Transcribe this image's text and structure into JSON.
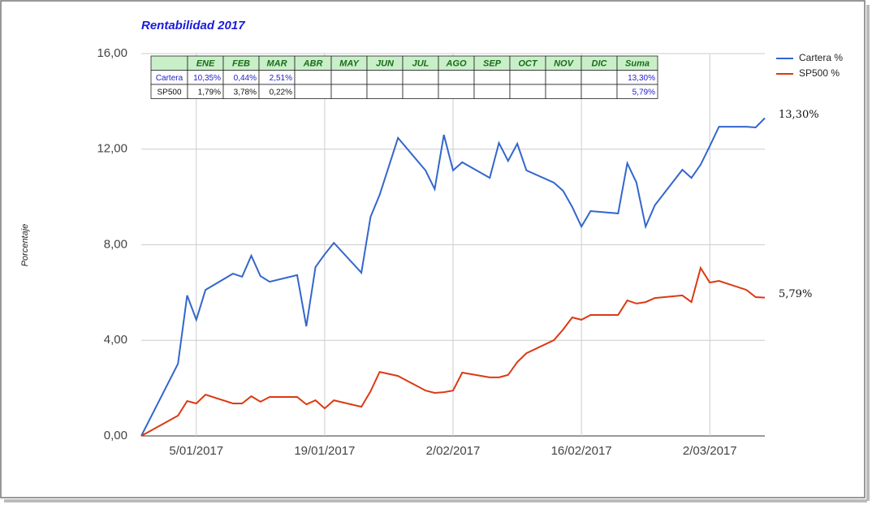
{
  "chart_data": {
    "type": "line",
    "title": "Rentabilidad 2017",
    "y_label": "Porcentaje",
    "x": [
      "2016-12-30",
      "2017-01-03",
      "2017-01-04",
      "2017-01-05",
      "2017-01-06",
      "2017-01-09",
      "2017-01-10",
      "2017-01-11",
      "2017-01-12",
      "2017-01-13",
      "2017-01-16",
      "2017-01-17",
      "2017-01-18",
      "2017-01-19",
      "2017-01-20",
      "2017-01-23",
      "2017-01-24",
      "2017-01-25",
      "2017-01-27",
      "2017-01-30",
      "2017-01-31",
      "2017-02-01",
      "2017-02-02",
      "2017-02-03",
      "2017-02-06",
      "2017-02-07",
      "2017-02-08",
      "2017-02-09",
      "2017-02-10",
      "2017-02-13",
      "2017-02-14",
      "2017-02-15",
      "2017-02-16",
      "2017-02-17",
      "2017-02-20",
      "2017-02-21",
      "2017-02-22",
      "2017-02-23",
      "2017-02-24",
      "2017-02-27",
      "2017-02-28",
      "2017-03-01",
      "2017-03-02",
      "2017-03-03",
      "2017-03-06",
      "2017-03-07",
      "2017-03-08"
    ],
    "series": [
      {
        "name": "Cartera %",
        "color": "#3366cc",
        "values": [
          0,
          3.02,
          5.88,
          4.86,
          6.11,
          6.79,
          6.66,
          7.54,
          6.69,
          6.45,
          6.73,
          4.59,
          7.07,
          7.6,
          8.08,
          6.83,
          9.17,
          10.09,
          12.47,
          11.11,
          10.33,
          12.6,
          11.11,
          11.45,
          10.8,
          12.26,
          11.51,
          12.23,
          11.11,
          10.6,
          10.26,
          9.58,
          8.76,
          9.41,
          9.31,
          11.41,
          10.6,
          8.76,
          9.65,
          11.14,
          10.8,
          11.35,
          12.13,
          12.94,
          12.94,
          12.91,
          13.3
        ]
      },
      {
        "name": "SP500 %",
        "color": "#dc3912",
        "values": [
          0,
          0.85,
          1.46,
          1.36,
          1.73,
          1.36,
          1.36,
          1.66,
          1.43,
          1.63,
          1.63,
          1.32,
          1.49,
          1.15,
          1.49,
          1.22,
          1.87,
          2.68,
          2.51,
          1.9,
          1.8,
          1.83,
          1.9,
          2.65,
          2.45,
          2.45,
          2.55,
          3.09,
          3.46,
          4.01,
          4.45,
          4.96,
          4.86,
          5.06,
          5.06,
          5.67,
          5.54,
          5.6,
          5.77,
          5.88,
          5.6,
          7.03,
          6.42,
          6.49,
          6.11,
          5.81,
          5.79
        ]
      }
    ],
    "annotations": [
      {
        "text": "13,30%",
        "series": 0
      },
      {
        "text": "5,79%",
        "series": 1
      }
    ],
    "xlim": [
      "2016-12-30",
      "2017-03-08"
    ],
    "xticks": [
      {
        "value": "2017-01-05",
        "label": "5/01/2017"
      },
      {
        "value": "2017-01-19",
        "label": "19/01/2017"
      },
      {
        "value": "2017-02-02",
        "label": "2/02/2017"
      },
      {
        "value": "2017-02-16",
        "label": "16/02/2017"
      },
      {
        "value": "2017-03-02",
        "label": "2/03/2017"
      }
    ],
    "ylim": [
      0,
      16
    ],
    "yticks": [
      {
        "value": 0,
        "label": "0,00"
      },
      {
        "value": 4,
        "label": "4,00"
      },
      {
        "value": 8,
        "label": "8,00"
      },
      {
        "value": 12,
        "label": "12,00"
      },
      {
        "value": 16,
        "label": "16,00"
      }
    ],
    "grid": true,
    "legend": "right",
    "table": {
      "header": [
        null,
        "ENE",
        "FEB",
        "MAR",
        "ABR",
        "MAY",
        "JUN",
        "JUL",
        "AGO",
        "SEP",
        "OCT",
        "NOV",
        "DIC",
        "Suma"
      ],
      "rows": [
        [
          "Cartera",
          "10,35%",
          "0,44%",
          "2,51%",
          null,
          null,
          null,
          null,
          null,
          null,
          null,
          null,
          null,
          "13,30%"
        ],
        [
          "SP500",
          "1,79%",
          "3,78%",
          "0,22%",
          null,
          null,
          null,
          null,
          null,
          null,
          null,
          null,
          null,
          "5,79%"
        ]
      ]
    }
  }
}
